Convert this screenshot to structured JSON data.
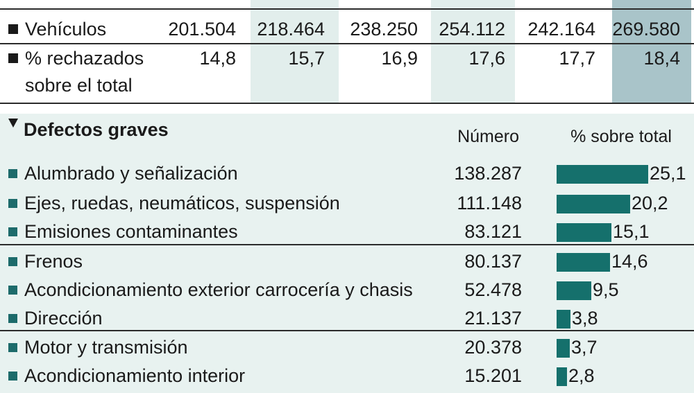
{
  "colors": {
    "bar": "#15706c",
    "panel_bg": "#e8f2f0",
    "col_light": "#e2eeec",
    "col_highlight": "#a9c4c9",
    "bullet": "#1d6b6b"
  },
  "top_table": {
    "rows": [
      {
        "label": "Vehículos",
        "values": [
          "201.504",
          "218.464",
          "238.250",
          "254.112",
          "242.164",
          "269.580"
        ]
      },
      {
        "label_line1": "% rechazados",
        "label_line2": "sobre el total",
        "values": [
          "14,8",
          "15,7",
          "16,9",
          "17,6",
          "17,7",
          "18,4"
        ]
      }
    ]
  },
  "section": {
    "title": "Defectos graves",
    "col_number": "Número",
    "col_pct": "% sobre total"
  },
  "chart_data": {
    "type": "bar",
    "title": "Defectos graves",
    "categories": [
      "Alumbrado y señalización",
      "Ejes, ruedas, neumáticos, suspensión",
      "Emisiones contaminantes",
      "Frenos",
      "Acondicionamiento exterior carrocería y chasis",
      "Dirección",
      "Motor y transmisión",
      "Acondicionamiento interior"
    ],
    "numbers": [
      "138.287",
      "111.148",
      "83.121",
      "80.137",
      "52.478",
      "21.137",
      "20.378",
      "15.201"
    ],
    "values": [
      25.1,
      20.2,
      15.1,
      14.6,
      9.5,
      3.8,
      3.7,
      2.8
    ],
    "value_labels": [
      "25,1",
      "20,2",
      "15,1",
      "14,6",
      "9,5",
      "3,8",
      "3,7",
      "2,8"
    ],
    "xlim": [
      0,
      25.1
    ],
    "grid": false
  }
}
